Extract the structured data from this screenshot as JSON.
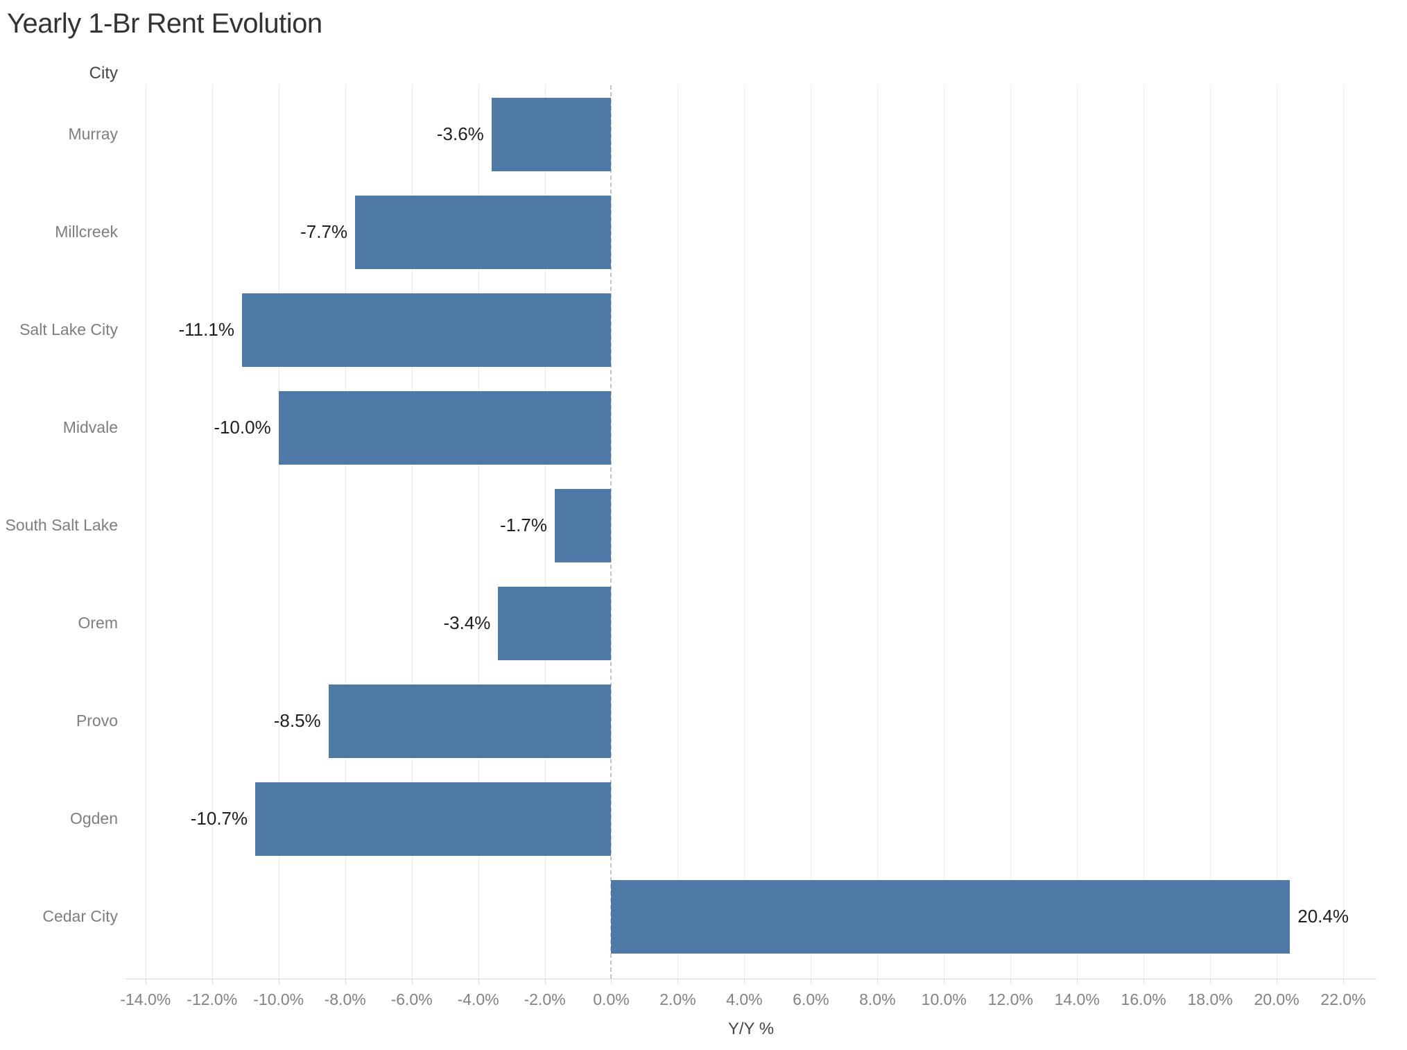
{
  "chart_data": {
    "type": "bar",
    "orientation": "horizontal",
    "title": "Yearly 1-Br Rent Evolution",
    "category_axis_label": "City",
    "value_axis_label": "Y/Y %",
    "categories": [
      "Murray",
      "Millcreek",
      "Salt Lake City",
      "Midvale",
      "South Salt Lake",
      "Orem",
      "Provo",
      "Ogden",
      "Cedar City"
    ],
    "values": [
      -3.6,
      -7.7,
      -11.1,
      -10.0,
      -1.7,
      -3.4,
      -8.5,
      -10.7,
      20.4
    ],
    "value_labels": [
      "-3.6%",
      "-7.7%",
      "-11.1%",
      "-10.0%",
      "-1.7%",
      "-3.4%",
      "-8.5%",
      "-10.7%",
      "20.4%"
    ],
    "x_tick_values": [
      -14,
      -12,
      -10,
      -8,
      -6,
      -4,
      -2,
      0,
      2,
      4,
      6,
      8,
      10,
      12,
      14,
      16,
      18,
      20,
      22
    ],
    "x_tick_labels": [
      "-14.0%",
      "-12.0%",
      "-10.0%",
      "-8.0%",
      "-6.0%",
      "-4.0%",
      "-2.0%",
      "0.0%",
      "2.0%",
      "4.0%",
      "6.0%",
      "8.0%",
      "10.0%",
      "12.0%",
      "14.0%",
      "16.0%",
      "18.0%",
      "20.0%",
      "22.0%"
    ],
    "xlim": [
      -14.6,
      23.0
    ],
    "grid": true,
    "zero_line": "dashed",
    "legend": "none",
    "bar_color": "#4e79a7"
  }
}
